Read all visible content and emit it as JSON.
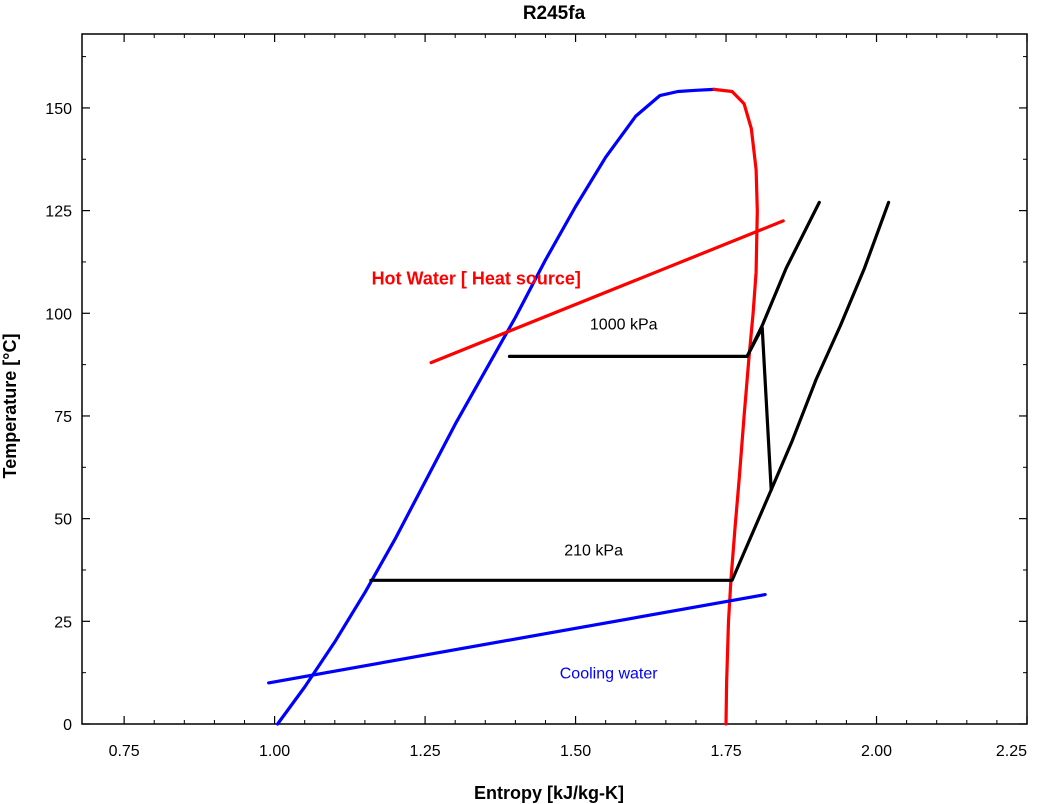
{
  "chart_data": {
    "type": "line",
    "title": "R245fa",
    "xlabel": "Entropy [kJ/kg-K]",
    "ylabel": "Temperature [°C]",
    "xlim": [
      0.68,
      2.25
    ],
    "ylim": [
      0,
      168
    ],
    "xticks": [
      0.75,
      1.0,
      1.25,
      1.5,
      1.75,
      2.0,
      2.25
    ],
    "xtick_labels": [
      "0.75",
      "1.00",
      "1.25",
      "1.50",
      "1.75",
      "2.00",
      "2.25"
    ],
    "yticks": [
      0,
      25,
      50,
      75,
      100,
      125,
      150
    ],
    "ytick_labels": [
      "0",
      "25",
      "50",
      "75",
      "100",
      "125",
      "150"
    ],
    "grid": false,
    "series": [
      {
        "color": "#0000ff",
        "x": [
          1.005,
          1.05,
          1.1,
          1.15,
          1.2,
          1.25,
          1.3,
          1.35,
          1.4,
          1.45,
          1.5,
          1.55,
          1.6,
          1.64,
          1.67,
          1.7,
          1.73
        ],
        "y": [
          0,
          9,
          20,
          32,
          45,
          59,
          73,
          86,
          99,
          113,
          126,
          138,
          148,
          153,
          154,
          154.3,
          154.5
        ]
      },
      {
        "color": "#ff0000",
        "x": [
          1.73,
          1.76,
          1.78,
          1.792,
          1.8,
          1.802,
          1.8,
          1.795,
          1.788,
          1.78,
          1.772,
          1.765,
          1.758,
          1.754,
          1.751,
          1.75
        ],
        "y": [
          154.5,
          154,
          151,
          145,
          135,
          125,
          110,
          100,
          89,
          75,
          60,
          48,
          35,
          25,
          10,
          0
        ]
      },
      {
        "color": "#ff0000",
        "x": [
          1.26,
          1.845
        ],
        "y": [
          88,
          122.5
        ]
      },
      {
        "color": "#0000ff",
        "x": [
          0.99,
          1.815
        ],
        "y": [
          10,
          31.5
        ]
      },
      {
        "color": "#000000",
        "x": [
          1.39,
          1.785,
          1.81,
          1.825,
          1.76,
          1.16
        ],
        "y": [
          89.5,
          89.5,
          96.5,
          57,
          35,
          35
        ]
      },
      {
        "color": "#000000",
        "x": [
          1.785,
          1.81,
          1.85,
          1.905
        ],
        "y": [
          89.5,
          97,
          111,
          127
        ]
      },
      {
        "color": "#000000",
        "x": [
          1.825,
          1.86,
          1.9,
          1.94,
          1.98,
          2.02
        ],
        "y": [
          57,
          69,
          84,
          97,
          111,
          127
        ]
      }
    ],
    "annotations": [
      {
        "text": "1000 kPa",
        "x": 1.58,
        "y": 97.5,
        "color": "#000000",
        "bold": false
      },
      {
        "text": "210 kPa",
        "x": 1.53,
        "y": 42.5,
        "color": "#000000",
        "bold": false
      },
      {
        "text": "Hot Water [ Heat source]",
        "x": 1.335,
        "y": 108.5,
        "color": "#ff0000",
        "bold": true
      },
      {
        "text": "Cooling water",
        "x": 1.555,
        "y": 12.5,
        "color": "#0000ff",
        "bold": false
      }
    ]
  }
}
